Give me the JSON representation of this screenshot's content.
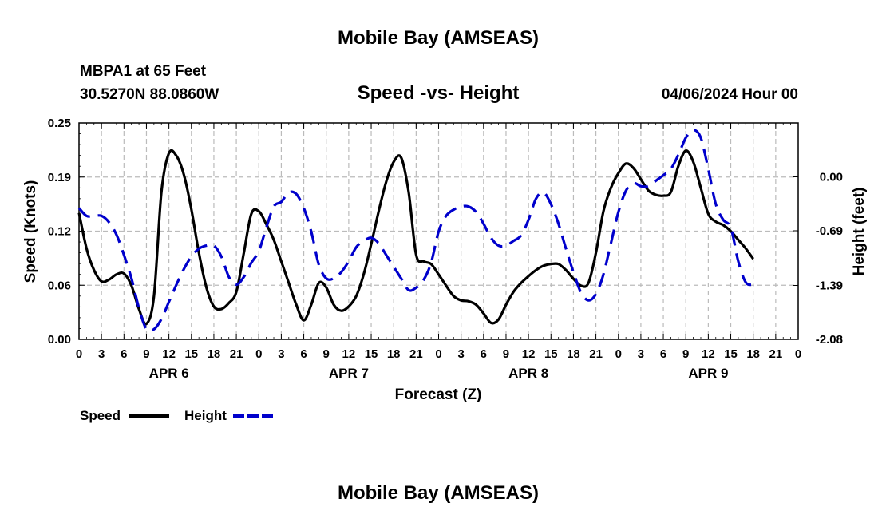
{
  "page": {
    "title_top": "Mobile Bay (AMSEAS)",
    "title_bottom": "Mobile Bay (AMSEAS)",
    "station_line1": "MBPA1 at 65 Feet",
    "station_line2": "30.5270N  88.0860W",
    "subtitle": "Speed -vs- Height",
    "datetime": "04/06/2024 Hour 00"
  },
  "legend": {
    "speed_label": "Speed",
    "height_label": "Height"
  },
  "colors": {
    "speed": "#000000",
    "height": "#0000cc",
    "grid": "#bbbbbb"
  },
  "chart_data": {
    "type": "line",
    "xlabel": "Forecast (Z)",
    "ylabel_left": "Speed (Knots)",
    "ylabel_right": "Height (feet)",
    "xlim": [
      0,
      96
    ],
    "ylim_left": [
      0.0,
      0.25
    ],
    "ylim_right": [
      -2.08,
      0.69
    ],
    "left_ticks": [
      "0.00",
      "0.06",
      "0.12",
      "0.19",
      "0.25"
    ],
    "right_ticks": [
      "-2.08",
      "-1.39",
      "-0.69",
      "0.00"
    ],
    "right_tick_values": [
      -2.08,
      -1.39,
      -0.69,
      0.0
    ],
    "x_tick_labels": [
      "0",
      "3",
      "6",
      "9",
      "12",
      "15",
      "18",
      "21",
      "0",
      "3",
      "6",
      "9",
      "12",
      "15",
      "18",
      "21",
      "0",
      "3",
      "6",
      "9",
      "12",
      "15",
      "18",
      "21",
      "0",
      "3",
      "6",
      "9",
      "12",
      "15",
      "18",
      "21",
      "0"
    ],
    "day_labels": [
      {
        "label": "APR 6",
        "hour": 12
      },
      {
        "label": "APR 7",
        "hour": 36
      },
      {
        "label": "APR 8",
        "hour": 60
      },
      {
        "label": "APR 9",
        "hour": 84
      }
    ],
    "grid": true,
    "legend_position": "bottom-left",
    "series": [
      {
        "name": "Speed",
        "axis": "left",
        "style": "solid",
        "points": [
          [
            0,
            0.146
          ],
          [
            1,
            0.105
          ],
          [
            2,
            0.08
          ],
          [
            3,
            0.067
          ],
          [
            4,
            0.069
          ],
          [
            5,
            0.075
          ],
          [
            6,
            0.076
          ],
          [
            7,
            0.062
          ],
          [
            8,
            0.035
          ],
          [
            9,
            0.018
          ],
          [
            10,
            0.05
          ],
          [
            11,
            0.17
          ],
          [
            12,
            0.215
          ],
          [
            13,
            0.212
          ],
          [
            14,
            0.19
          ],
          [
            15,
            0.15
          ],
          [
            16,
            0.1
          ],
          [
            17,
            0.06
          ],
          [
            18,
            0.038
          ],
          [
            19,
            0.035
          ],
          [
            20,
            0.042
          ],
          [
            21,
            0.055
          ],
          [
            22,
            0.1
          ],
          [
            23,
            0.145
          ],
          [
            24,
            0.148
          ],
          [
            25,
            0.133
          ],
          [
            26,
            0.115
          ],
          [
            27,
            0.09
          ],
          [
            28,
            0.065
          ],
          [
            29,
            0.04
          ],
          [
            30,
            0.022
          ],
          [
            31,
            0.04
          ],
          [
            32,
            0.065
          ],
          [
            33,
            0.06
          ],
          [
            34,
            0.04
          ],
          [
            35,
            0.033
          ],
          [
            36,
            0.038
          ],
          [
            37,
            0.05
          ],
          [
            38,
            0.075
          ],
          [
            39,
            0.11
          ],
          [
            40,
            0.148
          ],
          [
            41,
            0.182
          ],
          [
            42,
            0.205
          ],
          [
            43,
            0.21
          ],
          [
            44,
            0.17
          ],
          [
            45,
            0.098
          ],
          [
            46,
            0.09
          ],
          [
            47,
            0.087
          ],
          [
            48,
            0.075
          ],
          [
            49,
            0.062
          ],
          [
            50,
            0.05
          ],
          [
            51,
            0.045
          ],
          [
            52,
            0.044
          ],
          [
            53,
            0.04
          ],
          [
            54,
            0.03
          ],
          [
            55,
            0.019
          ],
          [
            56,
            0.023
          ],
          [
            57,
            0.04
          ],
          [
            58,
            0.055
          ],
          [
            59,
            0.065
          ],
          [
            60,
            0.073
          ],
          [
            61,
            0.08
          ],
          [
            62,
            0.085
          ],
          [
            63,
            0.087
          ],
          [
            64,
            0.087
          ],
          [
            65,
            0.08
          ],
          [
            66,
            0.07
          ],
          [
            67,
            0.062
          ],
          [
            68,
            0.065
          ],
          [
            69,
            0.1
          ],
          [
            70,
            0.148
          ],
          [
            71,
            0.175
          ],
          [
            72,
            0.192
          ],
          [
            73,
            0.203
          ],
          [
            74,
            0.198
          ],
          [
            75,
            0.185
          ],
          [
            76,
            0.172
          ],
          [
            77,
            0.167
          ],
          [
            78,
            0.166
          ],
          [
            79,
            0.17
          ],
          [
            80,
            0.2
          ],
          [
            81,
            0.218
          ],
          [
            82,
            0.205
          ],
          [
            83,
            0.175
          ],
          [
            84,
            0.145
          ],
          [
            85,
            0.136
          ],
          [
            86,
            0.132
          ],
          [
            87,
            0.125
          ],
          [
            88,
            0.115
          ],
          [
            89,
            0.105
          ],
          [
            90,
            0.093
          ]
        ]
      },
      {
        "name": "Height",
        "axis": "right",
        "style": "dashed",
        "points": [
          [
            0,
            -0.4
          ],
          [
            1,
            -0.5
          ],
          [
            2,
            -0.5
          ],
          [
            3,
            -0.5
          ],
          [
            4,
            -0.58
          ],
          [
            5,
            -0.74
          ],
          [
            6,
            -1.0
          ],
          [
            7,
            -1.3
          ],
          [
            8,
            -1.68
          ],
          [
            9,
            -1.95
          ],
          [
            10,
            -1.95
          ],
          [
            11,
            -1.82
          ],
          [
            12,
            -1.6
          ],
          [
            13,
            -1.38
          ],
          [
            14,
            -1.18
          ],
          [
            15,
            -1.02
          ],
          [
            16,
            -0.92
          ],
          [
            17,
            -0.88
          ],
          [
            18,
            -0.88
          ],
          [
            19,
            -1.02
          ],
          [
            20,
            -1.28
          ],
          [
            21,
            -1.38
          ],
          [
            22,
            -1.28
          ],
          [
            23,
            -1.1
          ],
          [
            24,
            -0.95
          ],
          [
            25,
            -0.65
          ],
          [
            26,
            -0.38
          ],
          [
            27,
            -0.32
          ],
          [
            28,
            -0.2
          ],
          [
            29,
            -0.22
          ],
          [
            30,
            -0.4
          ],
          [
            31,
            -0.7
          ],
          [
            32,
            -1.12
          ],
          [
            33,
            -1.3
          ],
          [
            34,
            -1.3
          ],
          [
            35,
            -1.22
          ],
          [
            36,
            -1.08
          ],
          [
            37,
            -0.9
          ],
          [
            38,
            -0.82
          ],
          [
            39,
            -0.78
          ],
          [
            40,
            -0.85
          ],
          [
            41,
            -1.0
          ],
          [
            42,
            -1.15
          ],
          [
            43,
            -1.3
          ],
          [
            44,
            -1.45
          ],
          [
            45,
            -1.42
          ],
          [
            46,
            -1.32
          ],
          [
            47,
            -1.1
          ],
          [
            48,
            -0.7
          ],
          [
            49,
            -0.5
          ],
          [
            50,
            -0.42
          ],
          [
            51,
            -0.38
          ],
          [
            52,
            -0.38
          ],
          [
            53,
            -0.45
          ],
          [
            54,
            -0.6
          ],
          [
            55,
            -0.78
          ],
          [
            56,
            -0.88
          ],
          [
            57,
            -0.88
          ],
          [
            58,
            -0.82
          ],
          [
            59,
            -0.75
          ],
          [
            60,
            -0.55
          ],
          [
            61,
            -0.28
          ],
          [
            62,
            -0.2
          ],
          [
            63,
            -0.35
          ],
          [
            64,
            -0.6
          ],
          [
            65,
            -0.92
          ],
          [
            66,
            -1.22
          ],
          [
            67,
            -1.48
          ],
          [
            68,
            -1.58
          ],
          [
            69,
            -1.5
          ],
          [
            70,
            -1.25
          ],
          [
            71,
            -0.85
          ],
          [
            72,
            -0.45
          ],
          [
            73,
            -0.18
          ],
          [
            74,
            -0.08
          ],
          [
            75,
            -0.12
          ],
          [
            76,
            -0.12
          ],
          [
            77,
            -0.05
          ],
          [
            78,
            0.02
          ],
          [
            79,
            0.1
          ],
          [
            80,
            0.28
          ],
          [
            81,
            0.5
          ],
          [
            82,
            0.6
          ],
          [
            83,
            0.5
          ],
          [
            84,
            0.1
          ],
          [
            85,
            -0.35
          ],
          [
            86,
            -0.55
          ],
          [
            87,
            -0.65
          ],
          [
            88,
            -1.08
          ],
          [
            89,
            -1.35
          ],
          [
            90,
            -1.38
          ]
        ]
      }
    ]
  }
}
